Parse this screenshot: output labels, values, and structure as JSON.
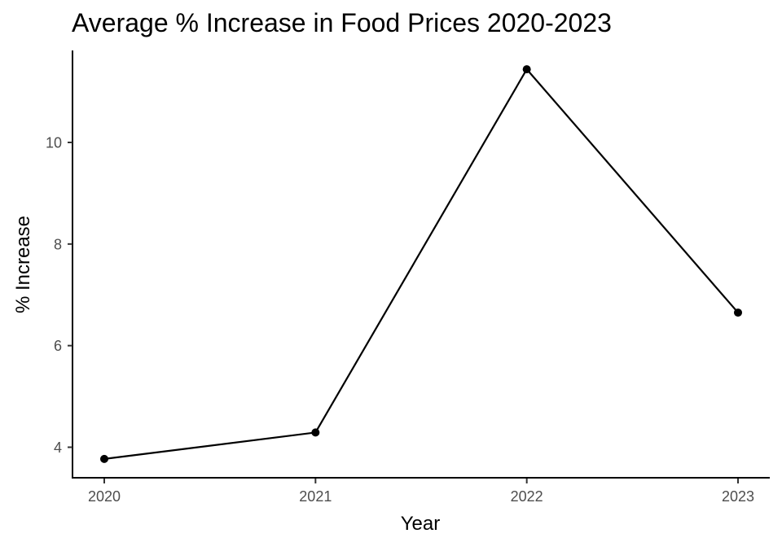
{
  "chart_data": {
    "type": "line",
    "title": "Average % Increase in Food Prices 2020-2023",
    "xlabel": "Year",
    "ylabel": "% Increase",
    "categories": [
      "2020",
      "2021",
      "2022",
      "2023"
    ],
    "series": [
      {
        "values": [
          3.77,
          4.29,
          11.44,
          6.65
        ]
      }
    ],
    "yticks": [
      4,
      6,
      8,
      10
    ],
    "ylim": [
      3.4,
      11.8
    ],
    "grid": false,
    "colors": {
      "line": "#000000",
      "points": "#000000",
      "tick_text": "#4d4d4d"
    }
  }
}
